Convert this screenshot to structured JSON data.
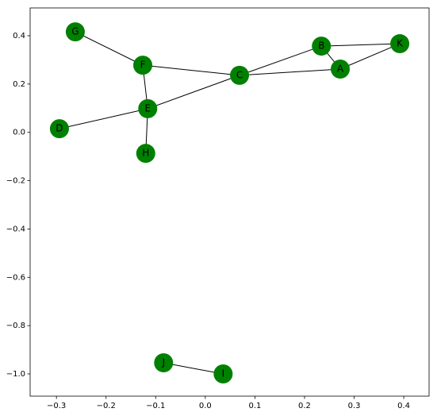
{
  "chart_data": {
    "type": "network",
    "node_color": "#008000",
    "edge_color": "#000000",
    "xlim": [
      -0.353,
      0.451
    ],
    "ylim": [
      -1.092,
      0.515
    ],
    "xticks": [
      {
        "value": -0.3,
        "label": "−0.3"
      },
      {
        "value": -0.2,
        "label": "−0.2"
      },
      {
        "value": -0.1,
        "label": "−0.1"
      },
      {
        "value": 0,
        "label": "0.0"
      },
      0.1,
      0.2,
      0.3,
      0.4
    ],
    "yticks": [
      0.4,
      0.2,
      {
        "value": 0,
        "label": "0.0"
      },
      {
        "value": -0.2,
        "label": "−0.2"
      },
      {
        "value": -0.4,
        "label": "−0.4"
      },
      {
        "value": -0.6,
        "label": "−0.6"
      },
      {
        "value": -0.8,
        "label": "−0.8"
      },
      {
        "value": -1.0,
        "label": "−1.0"
      }
    ],
    "nodes": [
      {
        "label": "A",
        "x": 0.272,
        "y": 0.262
      },
      {
        "label": "B",
        "x": 0.234,
        "y": 0.357
      },
      {
        "label": "C",
        "x": 0.069,
        "y": 0.236
      },
      {
        "label": "D",
        "x": -0.294,
        "y": 0.015
      },
      {
        "label": "E",
        "x": -0.116,
        "y": 0.098
      },
      {
        "label": "F",
        "x": -0.126,
        "y": 0.278
      },
      {
        "label": "G",
        "x": -0.262,
        "y": 0.416
      },
      {
        "label": "H",
        "x": -0.12,
        "y": -0.087
      },
      {
        "label": "I",
        "x": 0.036,
        "y": -1.0
      },
      {
        "label": "J",
        "x": -0.084,
        "y": -0.954
      },
      {
        "label": "K",
        "x": 0.392,
        "y": 0.367
      }
    ],
    "edges": [
      [
        "G",
        "F"
      ],
      [
        "F",
        "C"
      ],
      [
        "F",
        "E"
      ],
      [
        "E",
        "C"
      ],
      [
        "E",
        "D"
      ],
      [
        "E",
        "H"
      ],
      [
        "C",
        "B"
      ],
      [
        "C",
        "A"
      ],
      [
        "B",
        "A"
      ],
      [
        "B",
        "K"
      ],
      [
        "A",
        "K"
      ],
      [
        "J",
        "I"
      ]
    ]
  }
}
